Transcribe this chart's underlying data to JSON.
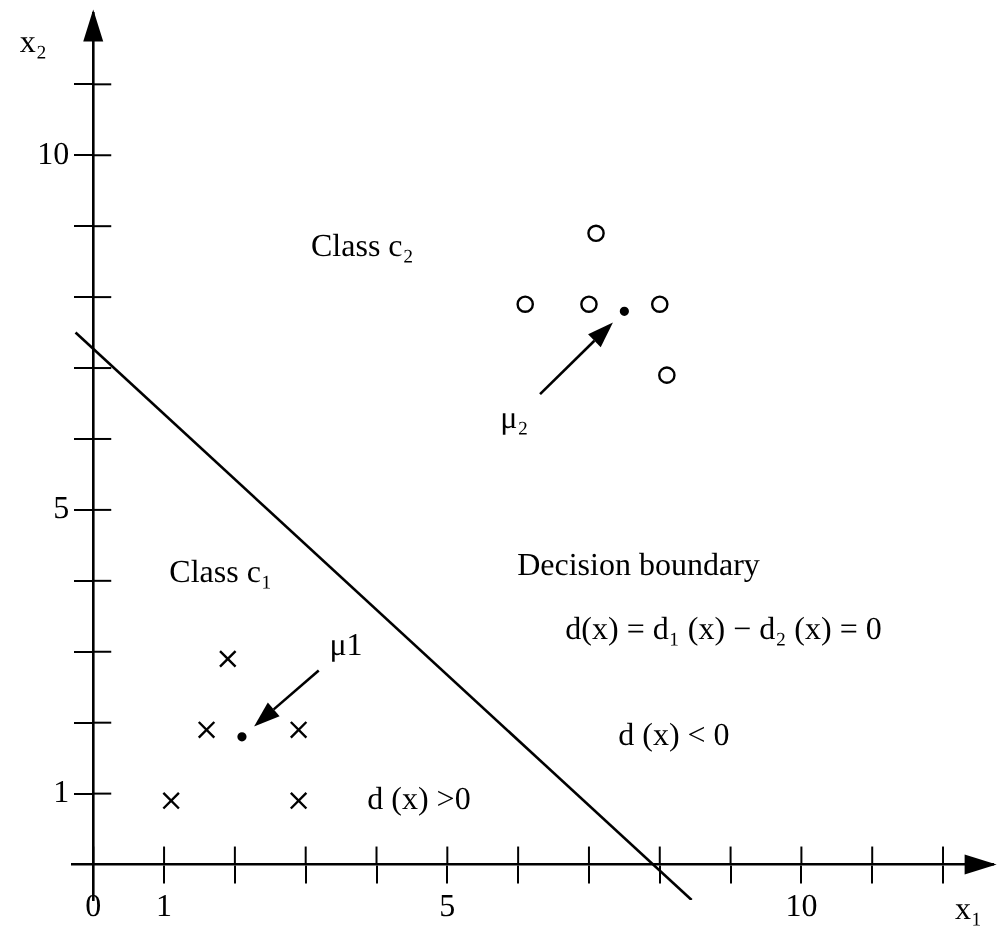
{
  "chart_data": {
    "type": "scatter",
    "xlabel": "x₁",
    "ylabel": "x₂",
    "xlim": [
      -0.3,
      12.7
    ],
    "ylim": [
      -0.5,
      12
    ],
    "xticks": [
      0,
      1,
      {
        "value": 2,
        "label": null
      },
      {
        "value": 3,
        "label": null
      },
      {
        "value": 4,
        "label": null
      },
      5,
      {
        "value": 6,
        "label": null
      },
      {
        "value": 7,
        "label": null
      },
      {
        "value": 8,
        "label": null
      },
      {
        "value": 9,
        "label": null
      },
      10,
      {
        "value": 11,
        "label": null
      },
      {
        "value": 12,
        "label": null
      }
    ],
    "yticks": [
      1,
      {
        "value": 2,
        "label": null
      },
      {
        "value": 3,
        "label": null
      },
      {
        "value": 4,
        "label": null
      },
      5,
      {
        "value": 6,
        "label": null
      },
      {
        "value": 7,
        "label": null
      },
      {
        "value": 8,
        "label": null
      },
      {
        "value": 9,
        "label": null
      },
      10,
      {
        "value": 11,
        "label": null
      }
    ],
    "grid": false,
    "legend": false,
    "series": [
      {
        "type": "scatter",
        "marker": "cross",
        "color": "#000000",
        "x": [
          1.1,
          2.9,
          1.6,
          2.9,
          1.9
        ],
        "values": [
          0.9,
          0.9,
          1.9,
          1.9,
          2.9
        ]
      },
      {
        "type": "scatter",
        "marker": "circle",
        "color": "#000000",
        "x": [
          7.1,
          6.1,
          7.0,
          8.0,
          8.1
        ],
        "values": [
          8.9,
          7.9,
          7.9,
          7.9,
          6.9
        ]
      },
      {
        "type": "scatter",
        "marker": "circle",
        "color": "#000000",
        "x": [
          2.1,
          7.5
        ],
        "values": [
          1.8,
          7.8
        ]
      },
      {
        "type": "line",
        "color": "#000000",
        "x": [
          -0.25,
          8.45
        ],
        "values": [
          7.5,
          -0.5
        ]
      }
    ],
    "annotations": [
      "Class c₂",
      "μ₂",
      "Decision boundary",
      "d(x) = d₁ (x) − d₂ (x) = 0",
      "Class c₁",
      "μ1",
      "d (x) >0",
      "d (x) < 0"
    ]
  }
}
